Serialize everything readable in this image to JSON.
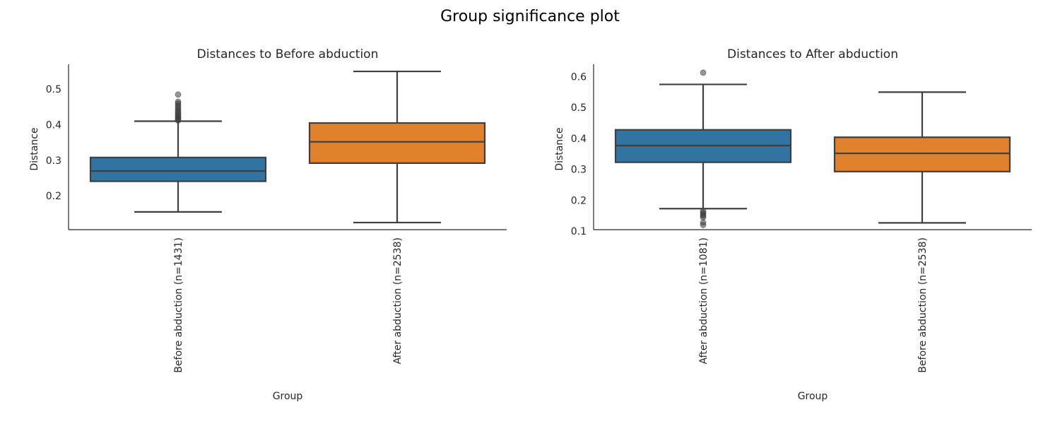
{
  "figure": {
    "title": "Group significance plot"
  },
  "chart_data": [
    {
      "type": "box",
      "title": "Distances to Before abduction",
      "xlabel": "Group",
      "ylabel": "Distance",
      "ylim": [
        0.105,
        0.57
      ],
      "yticks": [
        0.2,
        0.3,
        0.4,
        0.5
      ],
      "grid": false,
      "categories": [
        "Before abduction (n=1431)",
        "After abduction (n=2538)"
      ],
      "boxes": [
        {
          "name": "Before abduction (n=1431)",
          "whisker_low": 0.155,
          "q1": 0.241,
          "median": 0.27,
          "q3": 0.308,
          "whisker_high": 0.41,
          "outliers": [
            0.412,
            0.415,
            0.418,
            0.421,
            0.425,
            0.428,
            0.432,
            0.436,
            0.44,
            0.445,
            0.45,
            0.455,
            0.46,
            0.465,
            0.485
          ],
          "color": "#3274a1"
        },
        {
          "name": "After abduction (n=2538)",
          "whisker_low": 0.125,
          "q1": 0.292,
          "median": 0.352,
          "q3": 0.405,
          "whisker_high": 0.55,
          "outliers": [],
          "color": "#e1812c"
        }
      ]
    },
    {
      "type": "box",
      "title": "Distances to After abduction",
      "xlabel": "Group",
      "ylabel": "Distance",
      "ylim": [
        0.105,
        0.64
      ],
      "yticks": [
        0.1,
        0.2,
        0.3,
        0.4,
        0.5,
        0.6
      ],
      "grid": false,
      "categories": [
        "After abduction (n=1081)",
        "Before abduction (n=2538)"
      ],
      "boxes": [
        {
          "name": "After abduction (n=1081)",
          "whisker_low": 0.173,
          "q1": 0.323,
          "median": 0.377,
          "q3": 0.428,
          "whisker_high": 0.575,
          "outliers": [
            0.165,
            0.16,
            0.155,
            0.15,
            0.145,
            0.128,
            0.12,
            0.613
          ],
          "color": "#3274a1"
        },
        {
          "name": "Before abduction (n=2538)",
          "whisker_low": 0.127,
          "q1": 0.293,
          "median": 0.352,
          "q3": 0.404,
          "whisker_high": 0.55,
          "outliers": [],
          "color": "#e1812c"
        }
      ]
    }
  ]
}
